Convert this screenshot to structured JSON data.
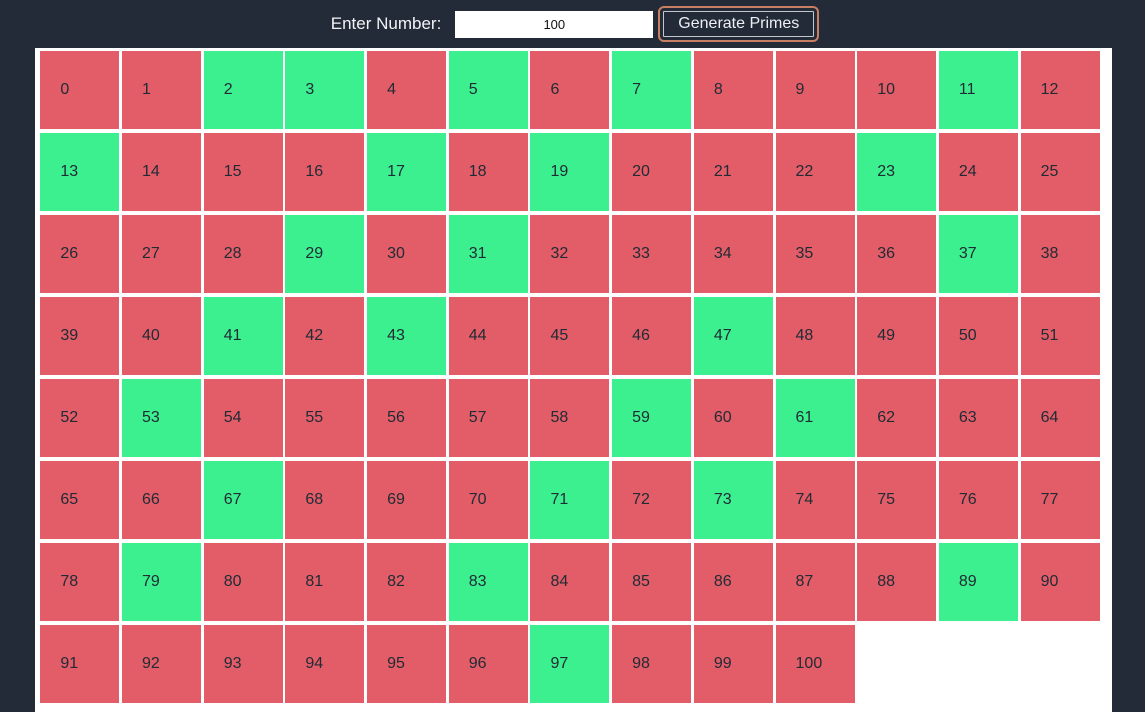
{
  "header": {
    "label": "Enter Number:",
    "input_value": "100",
    "button_label": "Generate Primes"
  },
  "grid": {
    "numbers": [
      0,
      1,
      2,
      3,
      4,
      5,
      6,
      7,
      8,
      9,
      10,
      11,
      12,
      13,
      14,
      15,
      16,
      17,
      18,
      19,
      20,
      21,
      22,
      23,
      24,
      25,
      26,
      27,
      28,
      29,
      30,
      31,
      32,
      33,
      34,
      35,
      36,
      37,
      38,
      39,
      40,
      41,
      42,
      43,
      44,
      45,
      46,
      47,
      48,
      49,
      50,
      51,
      52,
      53,
      54,
      55,
      56,
      57,
      58,
      59,
      60,
      61,
      62,
      63,
      64,
      65,
      66,
      67,
      68,
      69,
      70,
      71,
      72,
      73,
      74,
      75,
      76,
      77,
      78,
      79,
      80,
      81,
      82,
      83,
      84,
      85,
      86,
      87,
      88,
      89,
      90,
      91,
      92,
      93,
      94,
      95,
      96,
      97,
      98,
      99,
      100
    ],
    "green_numbers": [
      2,
      3,
      5,
      7,
      11,
      13,
      17,
      19,
      23,
      29,
      31,
      37,
      41,
      43,
      47,
      53,
      59,
      61,
      67,
      71,
      73,
      79,
      83,
      89,
      97
    ],
    "columns_per_row": 13,
    "colors": {
      "prime_green": "#3cf08f",
      "composite_red": "#e25d67",
      "cell_text": "#212b36",
      "panel_background": "#ffffff"
    }
  },
  "theme": {
    "page_background": "#242b38",
    "header_text_color": "#f2f3f5",
    "button_border_color": "#c3c8cf",
    "button_focus_ring_color": "#c87e62"
  }
}
